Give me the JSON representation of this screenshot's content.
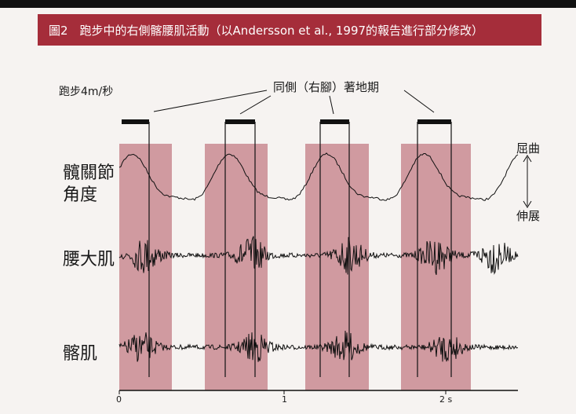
{
  "header": {
    "title": "圖2　跑步中的右側髂腰肌活動（以Andersson et al., 1997的報告進行部分修改）"
  },
  "figure": {
    "speed_label": "跑步4m/秒",
    "stance_label": "同側（右腳）著地期",
    "rows": [
      "髖關節",
      "角度",
      "腰大肌",
      "髂肌"
    ],
    "flexion": "屈曲",
    "extension": "伸展",
    "axis_labels": [
      "0",
      "1",
      "2 s"
    ]
  }
}
